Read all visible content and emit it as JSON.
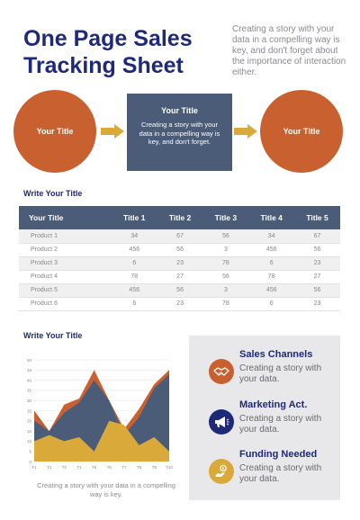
{
  "header": {
    "title": "One Page Sales Tracking Sheet",
    "intro": "Creating a story with your data in a compelling way is key, and don't forget about the importance of interaction either."
  },
  "process": {
    "left_title": "Your Title",
    "center_title": "Your Title",
    "center_text": "Creating a story with your data in a compelling way is key, and don't forget.",
    "right_title": "Your Title"
  },
  "table_section": {
    "title": "Write Your Title",
    "headers": [
      "Your Title",
      "Title 1",
      "Title 2",
      "Title 3",
      "Title 4",
      "Title 5"
    ],
    "rows": [
      [
        "Product 1",
        "34",
        "67",
        "56",
        "34",
        "67"
      ],
      [
        "Product 2",
        "456",
        "56",
        "3",
        "456",
        "56"
      ],
      [
        "Product 3",
        "6",
        "23",
        "78",
        "6",
        "23"
      ],
      [
        "Product 4",
        "78",
        "27",
        "56",
        "78",
        "27"
      ],
      [
        "Product 5",
        "456",
        "56",
        "3",
        "456",
        "56"
      ],
      [
        "Product 6",
        "6",
        "23",
        "78",
        "6",
        "23"
      ]
    ]
  },
  "chart_section": {
    "title": "Write Your Title",
    "caption": "Creating a story with your data in a compelling way is key."
  },
  "chart_data": {
    "type": "area",
    "x": [
      "T1",
      "T2",
      "T3",
      "T4",
      "T5",
      "T6",
      "T7",
      "T8",
      "T9",
      "T10"
    ],
    "ylim": [
      0,
      50
    ],
    "yticks": [
      0,
      5,
      10,
      15,
      20,
      25,
      30,
      35,
      40,
      45,
      50
    ],
    "series": [
      {
        "values": [
          25,
          15,
          28,
          31,
          45,
          30,
          16,
          26,
          38,
          45
        ],
        "color": "#c8602f"
      },
      {
        "values": [
          20,
          15,
          24,
          29,
          40,
          30,
          13,
          22,
          36,
          43
        ],
        "color": "#4a5c78"
      },
      {
        "values": [
          10,
          13,
          10,
          12,
          5,
          20,
          18,
          8,
          12,
          5
        ],
        "color": "#d9a93a"
      }
    ],
    "grid": true
  },
  "features": [
    {
      "title": "Sales Channels",
      "text": "Creating a story with your data.",
      "icon": "handshake-icon",
      "color": "#c8602f"
    },
    {
      "title": "Marketing Act.",
      "text": "Creating a story with your data.",
      "icon": "megaphone-icon",
      "color": "#1e2a78"
    },
    {
      "title": "Funding Needed",
      "text": "Creating a story with your data.",
      "icon": "funding-icon",
      "color": "#d9a93a"
    }
  ]
}
